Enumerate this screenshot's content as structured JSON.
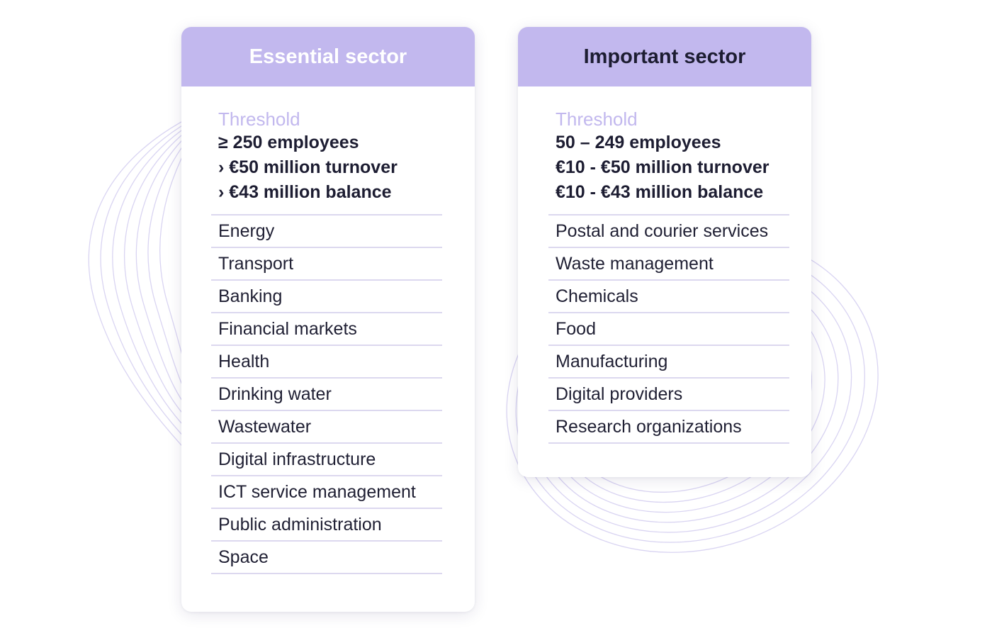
{
  "essential": {
    "title": "Essential sector",
    "threshold_label": "Threshold",
    "thresholds": [
      "≥ 250 employees",
      "› €50 million turnover",
      "› €43 million balance"
    ],
    "sectors": [
      "Energy",
      "Transport",
      "Banking",
      "Financial markets",
      "Health",
      "Drinking water",
      "Wastewater",
      "Digital infrastructure",
      "ICT service management",
      "Public administration",
      "Space"
    ]
  },
  "important": {
    "title": "Important sector",
    "threshold_label": "Threshold",
    "thresholds": [
      "50 – 249 employees",
      "€10 - €50 million turnover",
      "€10 - €43 million balance"
    ],
    "sectors": [
      "Postal and courier services",
      "Waste management",
      "Chemicals",
      "Food",
      "Manufacturing",
      "Digital providers",
      "Research organizations"
    ]
  },
  "colors": {
    "header_bg": "#c2b8ee",
    "threshold_label": "#c2b8ee",
    "divider": "#dcd8ef",
    "text_dark": "#1d1d32",
    "decoration": "#d9d4f2"
  }
}
